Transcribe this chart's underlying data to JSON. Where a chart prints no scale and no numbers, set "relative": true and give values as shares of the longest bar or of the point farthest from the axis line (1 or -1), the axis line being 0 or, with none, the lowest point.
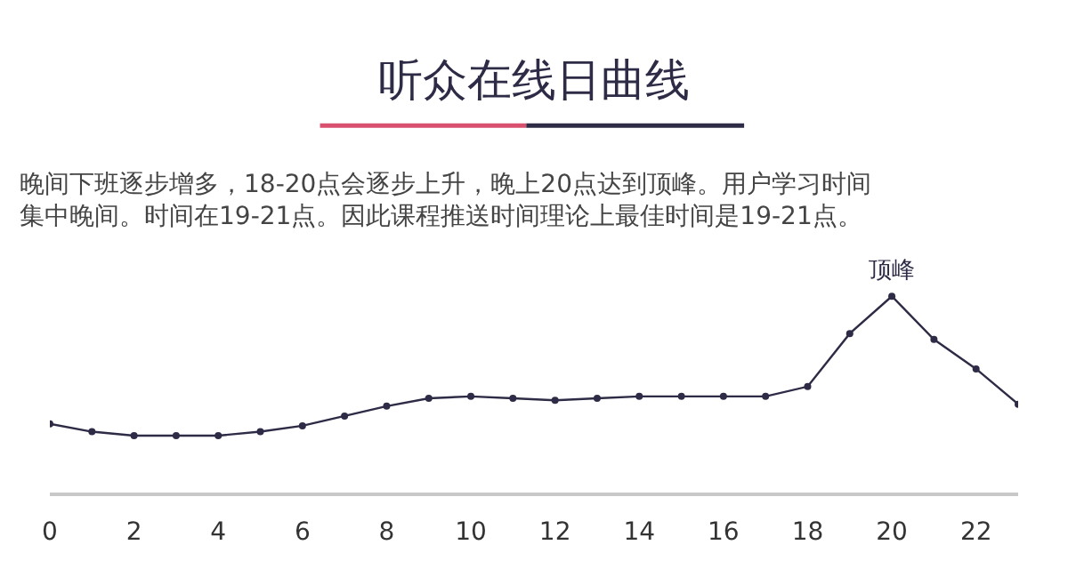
{
  "chart_data": {
    "type": "line",
    "relative": true,
    "title": "听众在线日曲线",
    "subtitle": "晚间下班逐步增多，18-20点会逐步上升，晚上20点达到顶峰。用户学习时间集中晚间。时间在19-21点。因此课程推送时间理论上最佳时间是19-21点。",
    "x": [
      0,
      1,
      2,
      3,
      4,
      5,
      6,
      7,
      8,
      9,
      10,
      11,
      12,
      13,
      14,
      15,
      16,
      17,
      18,
      19,
      20,
      21,
      22,
      23
    ],
    "xlim": [
      0,
      23
    ],
    "xticks": [
      0,
      2,
      4,
      6,
      8,
      10,
      12,
      14,
      16,
      18,
      20,
      22
    ],
    "series": [
      {
        "color": "#2d2b45",
        "values": [
          0.35,
          0.31,
          0.29,
          0.29,
          0.29,
          0.31,
          0.34,
          0.39,
          0.44,
          0.48,
          0.49,
          0.48,
          0.47,
          0.48,
          0.49,
          0.49,
          0.49,
          0.49,
          0.54,
          0.81,
          1,
          0.78,
          0.63,
          0.45
        ]
      }
    ],
    "annotations": [
      {
        "text": "顶峰",
        "x": 20,
        "y": 1
      }
    ],
    "marker": "circle",
    "line_style": "solid"
  }
}
